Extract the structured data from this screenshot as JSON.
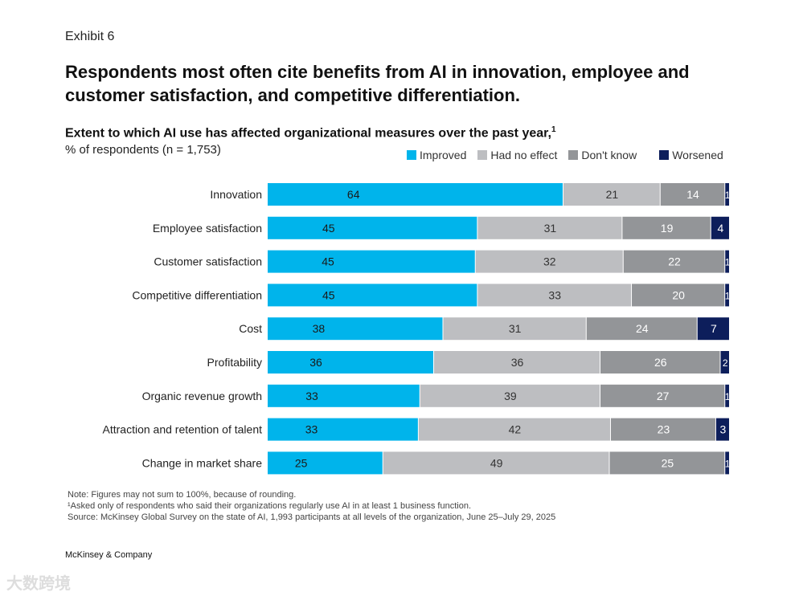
{
  "exhibit": "Exhibit 6",
  "title": "Respondents most often cite benefits from AI in innovation, employee and customer satisfaction, and competitive differentiation.",
  "subtitle": "Extent to which AI use has affected organizational measures over the past year,",
  "subtitle_footnote": "1",
  "unit_label": "% of respondents (n = 1,753)",
  "notes": [
    "Note: Figures may not sum to 100%, because of rounding.",
    "¹Asked only of respondents who said their organizations regularly use AI in at least 1 business function.",
    "Source: McKinsey Global Survey on the state of AI, 1,993 participants at all levels of the organization, June 25–July 29, 2025"
  ],
  "brand": "McKinsey & Company",
  "watermark": "大数跨境",
  "chart_data": {
    "type": "bar",
    "orientation": "horizontal",
    "stacked": true,
    "categories": [
      "Innovation",
      "Employee satisfaction",
      "Customer satisfaction",
      "Competitive differentiation",
      "Cost",
      "Profitability",
      "Organic revenue growth",
      "Attraction and retention of talent",
      "Change in market share"
    ],
    "series": [
      {
        "name": "Improved",
        "color": "#00b4eb",
        "label_color": "#1a1a1a",
        "values": [
          64,
          45,
          45,
          45,
          38,
          36,
          33,
          33,
          25
        ]
      },
      {
        "name": "Had no effect",
        "color": "#bdbec1",
        "label_color": "#333333",
        "values": [
          21,
          31,
          32,
          33,
          31,
          36,
          39,
          42,
          49
        ]
      },
      {
        "name": "Don't know",
        "color": "#939598",
        "label_color": "#ffffff",
        "values": [
          14,
          19,
          22,
          20,
          24,
          26,
          27,
          23,
          25
        ]
      },
      {
        "name": "Worsened",
        "color": "#0d1e5b",
        "label_color": "#ffffff",
        "values": [
          1,
          4,
          1,
          1,
          7,
          2,
          1,
          3,
          1
        ]
      }
    ],
    "legend_position": "top-right",
    "grid": false
  }
}
